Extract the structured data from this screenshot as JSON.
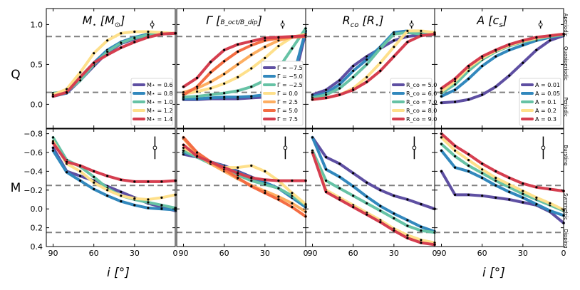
{
  "figure": {
    "x_axis_label": "i [°]",
    "row_labels": [
      "Q",
      "M"
    ],
    "q_regime_labels": [
      "Aperiodic",
      "Quasiperiodic",
      "Periodic"
    ],
    "m_regime_labels": [
      "Bursting",
      "Symmetric",
      "Dipping"
    ],
    "colors": [
      "#5e4fa2",
      "#3288bd",
      "#66c2a5",
      "#fee08b",
      "#d53e4f"
    ],
    "threshold_color": "#808080",
    "q_thresholds": [
      0.15,
      0.85
    ],
    "m_thresholds": [
      -0.25,
      0.25
    ]
  },
  "chart_data": [
    {
      "type": "line",
      "row": "Q",
      "col": 0,
      "title": "M⋆ [M⊙]",
      "xlabel": "",
      "ylabel": "Q",
      "xlim": [
        95,
        0
      ],
      "ylim": [
        -0.3,
        1.2
      ],
      "x_ticks": [
        90,
        60,
        30,
        0
      ],
      "y_ticks": [
        0.0,
        0.5,
        1.0
      ],
      "x": [
        90,
        80,
        70,
        60,
        50,
        40,
        30,
        20,
        10,
        0
      ],
      "errorbar": {
        "x": 17,
        "y": 1.0,
        "err": 0.05
      },
      "legend": {
        "position": "lower-right"
      },
      "series": [
        {
          "name": "M⋆ = 0.6",
          "values": [
            0.12,
            0.14,
            0.3,
            0.48,
            0.65,
            0.76,
            0.82,
            0.87,
            0.88,
            0.89
          ]
        },
        {
          "name": "M⋆ = 0.8",
          "values": [
            0.1,
            0.14,
            0.34,
            0.52,
            0.68,
            0.78,
            0.84,
            0.88,
            0.89,
            0.89
          ]
        },
        {
          "name": "M⋆ = 1.0",
          "values": [
            0.14,
            0.16,
            0.3,
            0.5,
            0.66,
            0.77,
            0.83,
            0.87,
            0.88,
            0.89
          ]
        },
        {
          "name": "M⋆ = 1.2",
          "values": [
            0.12,
            0.19,
            0.4,
            0.64,
            0.8,
            0.89,
            0.91,
            0.91,
            0.9,
            0.89
          ]
        },
        {
          "name": "M⋆ = 1.4",
          "values": [
            0.1,
            0.15,
            0.34,
            0.52,
            0.62,
            0.71,
            0.78,
            0.84,
            0.88,
            0.89
          ]
        }
      ]
    },
    {
      "type": "line",
      "row": "Q",
      "col": 1,
      "title": "Γ [B_oct / B_dip]",
      "xlabel": "",
      "ylabel": "",
      "xlim": [
        95,
        0
      ],
      "ylim": [
        -0.3,
        1.2
      ],
      "x_ticks": [
        90,
        60,
        30,
        0
      ],
      "y_ticks": [],
      "x": [
        90,
        80,
        70,
        60,
        50,
        40,
        30,
        20,
        10,
        0
      ],
      "errorbar": {
        "x": 17,
        "y": 1.0,
        "err": 0.05
      },
      "legend": {
        "position": "lower-right"
      },
      "series": [
        {
          "name": "Γ = −7.5",
          "values": [
            0.06,
            0.06,
            0.07,
            0.07,
            0.07,
            0.08,
            0.09,
            0.11,
            0.2,
            0.9
          ]
        },
        {
          "name": "Γ = −5.0",
          "values": [
            0.07,
            0.07,
            0.08,
            0.09,
            0.09,
            0.1,
            0.12,
            0.16,
            0.3,
            0.92
          ]
        },
        {
          "name": "Γ = −2.5",
          "values": [
            0.09,
            0.1,
            0.12,
            0.14,
            0.17,
            0.22,
            0.3,
            0.45,
            0.7,
            0.95
          ]
        },
        {
          "name": "Γ = 0.0",
          "values": [
            0.13,
            0.16,
            0.2,
            0.26,
            0.34,
            0.45,
            0.58,
            0.73,
            0.84,
            0.88
          ]
        },
        {
          "name": "Γ = 2.5",
          "values": [
            0.15,
            0.2,
            0.28,
            0.38,
            0.5,
            0.62,
            0.72,
            0.8,
            0.84,
            0.86
          ]
        },
        {
          "name": "Γ = 5.0",
          "values": [
            0.12,
            0.22,
            0.4,
            0.54,
            0.66,
            0.74,
            0.8,
            0.83,
            0.84,
            0.85
          ]
        },
        {
          "name": "Γ = 7.5",
          "values": [
            0.22,
            0.33,
            0.53,
            0.68,
            0.75,
            0.79,
            0.83,
            0.84,
            0.85,
            0.86
          ]
        }
      ]
    },
    {
      "type": "line",
      "row": "Q",
      "col": 2,
      "title": "R_co [R⋆]",
      "xlabel": "",
      "ylabel": "",
      "xlim": [
        95,
        0
      ],
      "ylim": [
        -0.3,
        1.2
      ],
      "x_ticks": [
        90,
        60,
        30,
        0
      ],
      "y_ticks": [],
      "x": [
        90,
        80,
        70,
        60,
        50,
        40,
        30,
        20,
        10,
        0
      ],
      "errorbar": {
        "x": 17,
        "y": 1.0,
        "err": 0.05
      },
      "legend": {
        "position": "lower-right"
      },
      "series": [
        {
          "name": "R_co = 5.0",
          "values": [
            0.12,
            0.18,
            0.3,
            0.48,
            0.6,
            0.7,
            0.8,
            0.85,
            0.87,
            0.87
          ]
        },
        {
          "name": "R_co = 6.0",
          "values": [
            0.1,
            0.14,
            0.25,
            0.42,
            0.56,
            0.72,
            0.9,
            0.92,
            0.9,
            0.88
          ]
        },
        {
          "name": "R_co = 7.0",
          "values": [
            0.08,
            0.12,
            0.2,
            0.34,
            0.5,
            0.7,
            0.88,
            0.9,
            0.88,
            0.87
          ]
        },
        {
          "name": "R_co = 8.0",
          "values": [
            0.06,
            0.08,
            0.12,
            0.2,
            0.34,
            0.52,
            0.72,
            0.92,
            0.92,
            0.9
          ]
        },
        {
          "name": "R_co = 9.0",
          "values": [
            0.06,
            0.08,
            0.12,
            0.18,
            0.28,
            0.42,
            0.6,
            0.78,
            0.86,
            0.88
          ]
        }
      ]
    },
    {
      "type": "line",
      "row": "Q",
      "col": 3,
      "title": "A [c_s]",
      "xlabel": "",
      "ylabel": "",
      "xlim": [
        95,
        0
      ],
      "ylim": [
        -0.3,
        1.2
      ],
      "x_ticks": [
        90,
        60,
        30,
        0
      ],
      "y_ticks": [],
      "x": [
        90,
        80,
        70,
        60,
        50,
        40,
        30,
        20,
        10,
        0
      ],
      "errorbar": {
        "x": 17,
        "y": 1.0,
        "err": 0.05
      },
      "legend": {
        "position": "lower-right"
      },
      "series": [
        {
          "name": "A = 0.01",
          "values": [
            0.02,
            0.03,
            0.06,
            0.12,
            0.22,
            0.36,
            0.52,
            0.68,
            0.8,
            0.86
          ]
        },
        {
          "name": "A = 0.05",
          "values": [
            0.1,
            0.18,
            0.32,
            0.48,
            0.6,
            0.68,
            0.74,
            0.8,
            0.84,
            0.87
          ]
        },
        {
          "name": "A = 0.1",
          "values": [
            0.14,
            0.25,
            0.42,
            0.56,
            0.66,
            0.73,
            0.78,
            0.82,
            0.85,
            0.87
          ]
        },
        {
          "name": "A = 0.2",
          "values": [
            0.16,
            0.29,
            0.46,
            0.58,
            0.67,
            0.74,
            0.79,
            0.83,
            0.86,
            0.88
          ]
        },
        {
          "name": "A = 0.3",
          "values": [
            0.2,
            0.32,
            0.48,
            0.6,
            0.68,
            0.75,
            0.8,
            0.84,
            0.86,
            0.88
          ]
        }
      ]
    },
    {
      "type": "line",
      "row": "M",
      "col": 0,
      "title": "",
      "xlabel": "i [°]",
      "ylabel": "M",
      "xlim": [
        95,
        0
      ],
      "ylim": [
        0.4,
        -0.85
      ],
      "x_ticks": [
        90,
        60,
        30,
        0
      ],
      "y_ticks": [
        -0.8,
        -0.6,
        -0.4,
        -0.2,
        0.0,
        0.2,
        0.4
      ],
      "x": [
        90,
        80,
        70,
        60,
        50,
        40,
        30,
        20,
        10,
        0
      ],
      "errorbar": {
        "x": 15,
        "y": -0.65,
        "err": 0.12
      },
      "series": [
        {
          "name": "M⋆ = 0.6",
          "values": [
            -0.65,
            -0.4,
            -0.35,
            -0.3,
            -0.24,
            -0.18,
            -0.12,
            -0.06,
            -0.02,
            0.02
          ]
        },
        {
          "name": "M⋆ = 0.8",
          "values": [
            -0.62,
            -0.39,
            -0.3,
            -0.21,
            -0.14,
            -0.08,
            -0.04,
            -0.01,
            0.0,
            0.01
          ]
        },
        {
          "name": "M⋆ = 1.0",
          "values": [
            -0.76,
            -0.52,
            -0.45,
            -0.34,
            -0.22,
            -0.14,
            -0.1,
            -0.07,
            -0.04,
            -0.01
          ]
        },
        {
          "name": "M⋆ = 1.2",
          "values": [
            -0.72,
            -0.48,
            -0.4,
            -0.28,
            -0.2,
            -0.14,
            -0.11,
            -0.1,
            -0.12,
            -0.15
          ]
        },
        {
          "name": "M⋆ = 1.4",
          "values": [
            -0.7,
            -0.5,
            -0.46,
            -0.4,
            -0.35,
            -0.31,
            -0.29,
            -0.29,
            -0.29,
            -0.3
          ]
        }
      ]
    },
    {
      "type": "line",
      "row": "M",
      "col": 1,
      "title": "",
      "xlabel": "",
      "ylabel": "",
      "xlim": [
        95,
        0
      ],
      "ylim": [
        0.4,
        -0.85
      ],
      "x_ticks": [
        90,
        60,
        30,
        0
      ],
      "y_ticks": [],
      "x": [
        90,
        80,
        70,
        60,
        50,
        40,
        30,
        20,
        10,
        0
      ],
      "errorbar": {
        "x": 15,
        "y": -0.65,
        "err": 0.12
      },
      "series": [
        {
          "name": "Γ = −7.5",
          "values": [
            -0.58,
            -0.55,
            -0.5,
            -0.46,
            -0.4,
            -0.34,
            -0.28,
            -0.22,
            -0.12,
            -0.03
          ]
        },
        {
          "name": "Γ = −5.0",
          "values": [
            -0.6,
            -0.56,
            -0.5,
            -0.45,
            -0.39,
            -0.33,
            -0.28,
            -0.22,
            -0.12,
            -0.02
          ]
        },
        {
          "name": "Γ = −2.5",
          "values": [
            -0.62,
            -0.55,
            -0.48,
            -0.42,
            -0.36,
            -0.3,
            -0.26,
            -0.22,
            -0.14,
            -0.04
          ]
        },
        {
          "name": "Γ = 0.0",
          "values": [
            -0.65,
            -0.57,
            -0.5,
            -0.44,
            -0.44,
            -0.46,
            -0.4,
            -0.3,
            -0.17,
            -0.05
          ]
        },
        {
          "name": "Γ = 2.5",
          "values": [
            -0.75,
            -0.58,
            -0.48,
            -0.4,
            -0.32,
            -0.25,
            -0.19,
            -0.13,
            -0.06,
            0.03
          ]
        },
        {
          "name": "Γ = 5.0",
          "values": [
            -0.76,
            -0.6,
            -0.5,
            -0.42,
            -0.33,
            -0.24,
            -0.17,
            -0.1,
            -0.02,
            0.08
          ]
        },
        {
          "name": "Γ = 7.5",
          "values": [
            -0.68,
            -0.56,
            -0.5,
            -0.44,
            -0.38,
            -0.33,
            -0.31,
            -0.3,
            -0.3,
            -0.3
          ]
        }
      ]
    },
    {
      "type": "line",
      "row": "M",
      "col": 2,
      "title": "",
      "xlabel": "",
      "ylabel": "",
      "xlim": [
        95,
        0
      ],
      "ylim": [
        0.4,
        -0.85
      ],
      "x_ticks": [
        90,
        60,
        30,
        0
      ],
      "y_ticks": [],
      "x": [
        90,
        80,
        70,
        60,
        50,
        40,
        30,
        20,
        10,
        0
      ],
      "errorbar": {
        "x": 15,
        "y": -0.65,
        "err": 0.12
      },
      "series": [
        {
          "name": "R_co = 5.0",
          "values": [
            -0.76,
            -0.55,
            -0.48,
            -0.38,
            -0.28,
            -0.2,
            -0.14,
            -0.1,
            -0.05,
            0.0
          ]
        },
        {
          "name": "R_co = 6.0",
          "values": [
            -0.76,
            -0.42,
            -0.34,
            -0.24,
            -0.13,
            -0.03,
            0.05,
            0.12,
            0.19,
            0.24
          ]
        },
        {
          "name": "R_co = 7.0",
          "values": [
            -0.62,
            -0.3,
            -0.22,
            -0.14,
            -0.06,
            0.02,
            0.1,
            0.18,
            0.23,
            0.25
          ]
        },
        {
          "name": "R_co = 8.0",
          "values": [
            -0.6,
            -0.2,
            -0.12,
            -0.04,
            0.04,
            0.12,
            0.21,
            0.28,
            0.33,
            0.36
          ]
        },
        {
          "name": "R_co = 9.0",
          "values": [
            -0.6,
            -0.18,
            -0.1,
            -0.02,
            0.06,
            0.14,
            0.23,
            0.31,
            0.36,
            0.38
          ]
        }
      ]
    },
    {
      "type": "line",
      "row": "M",
      "col": 3,
      "title": "",
      "xlabel": "i [°]",
      "ylabel": "",
      "xlim": [
        95,
        0
      ],
      "ylim": [
        0.4,
        -0.85
      ],
      "x_ticks": [
        90,
        60,
        30,
        0
      ],
      "y_ticks": [],
      "x": [
        90,
        80,
        70,
        60,
        50,
        40,
        30,
        20,
        10,
        0
      ],
      "errorbar": {
        "x": 15,
        "y": -0.65,
        "err": 0.12
      },
      "series": [
        {
          "name": "A = 0.01",
          "values": [
            -0.4,
            -0.15,
            -0.15,
            -0.14,
            -0.12,
            -0.1,
            -0.07,
            -0.04,
            0.03,
            0.15
          ]
        },
        {
          "name": "A = 0.05",
          "values": [
            -0.62,
            -0.44,
            -0.4,
            -0.33,
            -0.25,
            -0.18,
            -0.12,
            -0.05,
            0.02,
            0.07
          ]
        },
        {
          "name": "A = 0.1",
          "values": [
            -0.69,
            -0.56,
            -0.46,
            -0.38,
            -0.3,
            -0.23,
            -0.16,
            -0.1,
            -0.04,
            0.02
          ]
        },
        {
          "name": "A = 0.2",
          "values": [
            -0.76,
            -0.62,
            -0.52,
            -0.42,
            -0.33,
            -0.26,
            -0.19,
            -0.12,
            -0.06,
            0.01
          ]
        },
        {
          "name": "A = 0.3",
          "values": [
            -0.8,
            -0.67,
            -0.58,
            -0.48,
            -0.4,
            -0.33,
            -0.27,
            -0.23,
            -0.21,
            -0.19
          ]
        }
      ]
    }
  ]
}
